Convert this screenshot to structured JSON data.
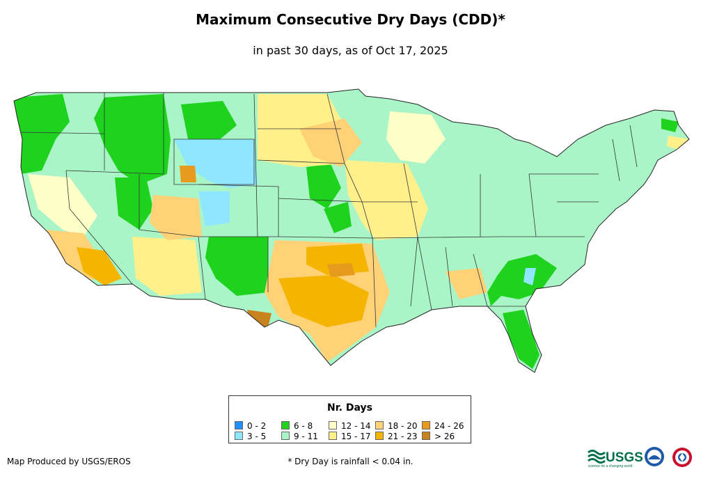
{
  "header": {
    "title": "Maximum Consecutive Dry Days (CDD)*",
    "subtitle": "in past 30 days, as of Oct 17, 2025"
  },
  "legend": {
    "title": "Nr. Days",
    "items": [
      {
        "label": "0 - 2",
        "color": "#1e90ff"
      },
      {
        "label": "3 - 5",
        "color": "#8ee6ff"
      },
      {
        "label": "6 - 8",
        "color": "#1ed21e"
      },
      {
        "label": "9 - 11",
        "color": "#aaf5c8"
      },
      {
        "label": "12 - 14",
        "color": "#ffffc8"
      },
      {
        "label": "15 - 17",
        "color": "#fff08c"
      },
      {
        "label": "18 - 20",
        "color": "#ffd278"
      },
      {
        "label": "21 - 23",
        "color": "#f5b400"
      },
      {
        "label": "24 - 26",
        "color": "#e69b1e"
      },
      {
        "label": "> 26",
        "color": "#c8821e"
      }
    ]
  },
  "footer": {
    "credit": "Map Produced by USGS/EROS",
    "note": "* Dry Day is rainfall < 0.04 in.",
    "logos": [
      "USGS",
      "NOAA",
      "National Weather Service"
    ]
  },
  "logo_text": {
    "usgs": "USGS",
    "usgs_tagline": "science for a changing world"
  }
}
